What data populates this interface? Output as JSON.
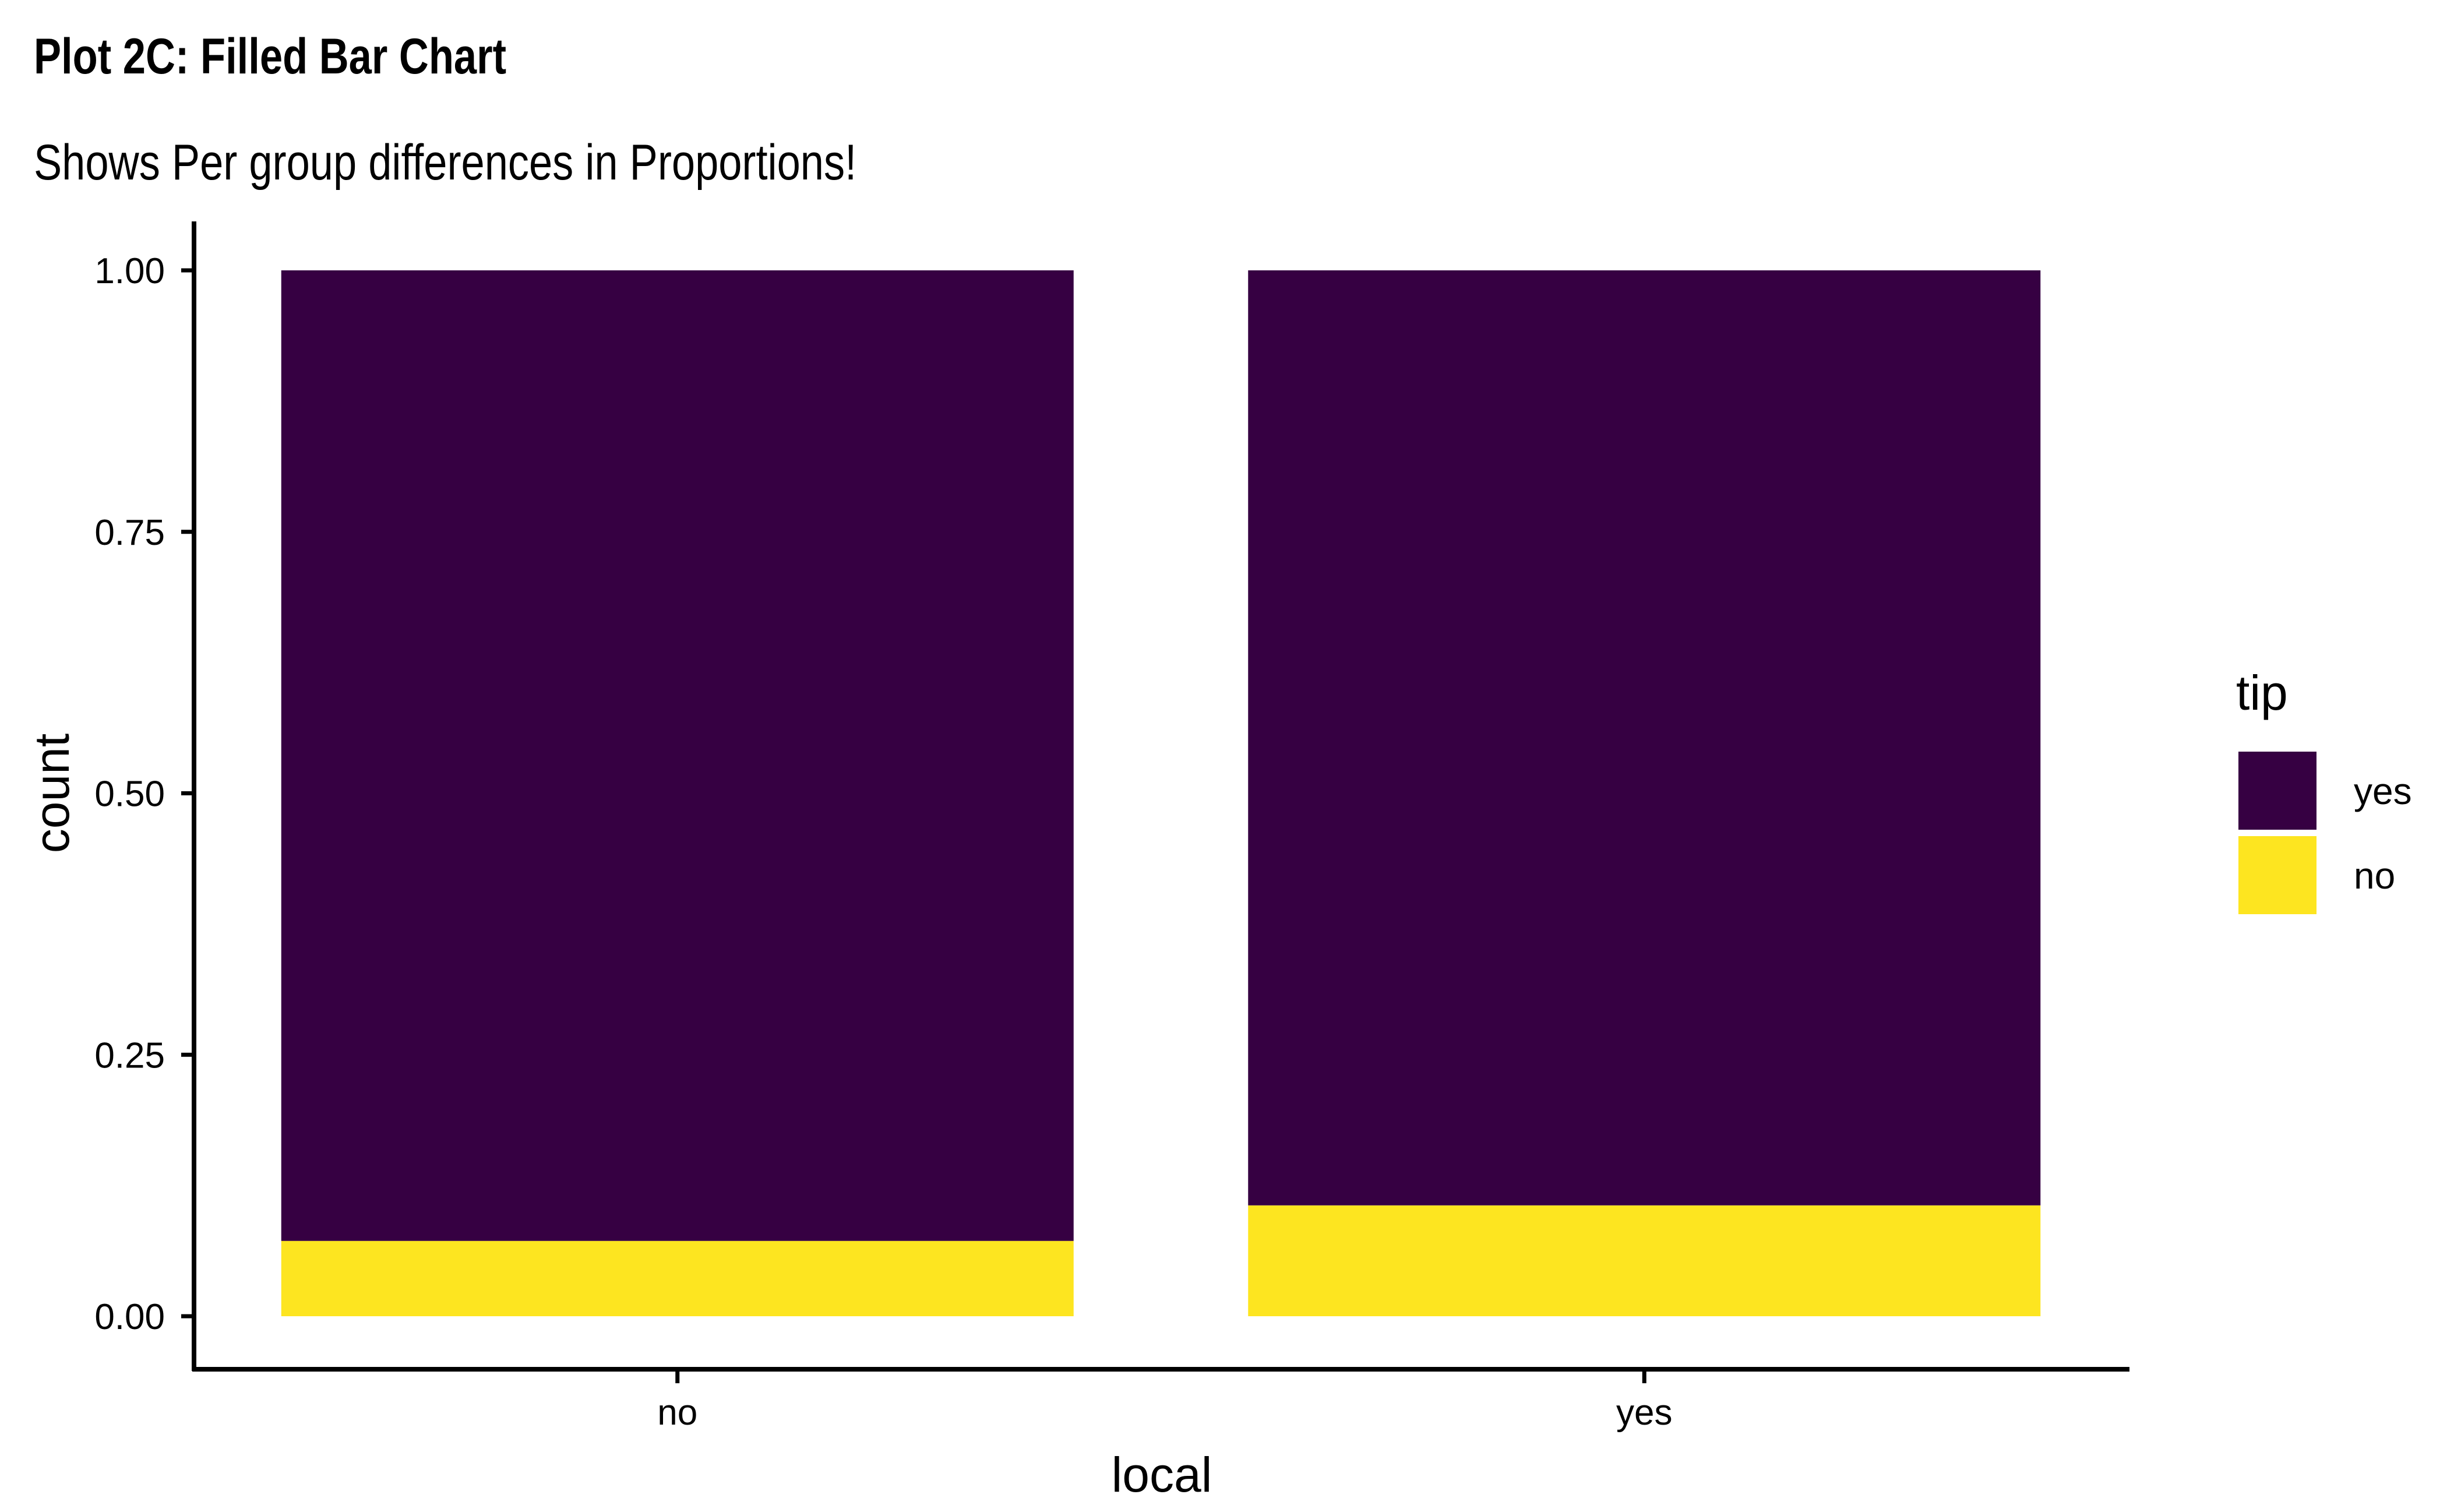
{
  "title": "Plot 2C: Filled Bar Chart",
  "subtitle": "Shows Per group differences in Proportions!",
  "chart_data": {
    "type": "bar",
    "stacked": "fill",
    "categories": [
      "no",
      "yes"
    ],
    "series": [
      {
        "name": "yes",
        "values": [
          0.928,
          0.894
        ],
        "color": "#360042"
      },
      {
        "name": "no",
        "values": [
          0.072,
          0.106
        ],
        "color": "#FDE520"
      }
    ],
    "xlabel": "local",
    "ylabel": "count",
    "ylim": [
      0,
      1
    ],
    "yticks": [
      0,
      0.25,
      0.5,
      0.75,
      1
    ],
    "ytick_labels": [
      "0.00",
      "0.25",
      "0.50",
      "0.75",
      "1.00"
    ],
    "grid": false,
    "legend": {
      "title": "tip",
      "position": "right",
      "entries": [
        "yes",
        "no"
      ]
    }
  }
}
